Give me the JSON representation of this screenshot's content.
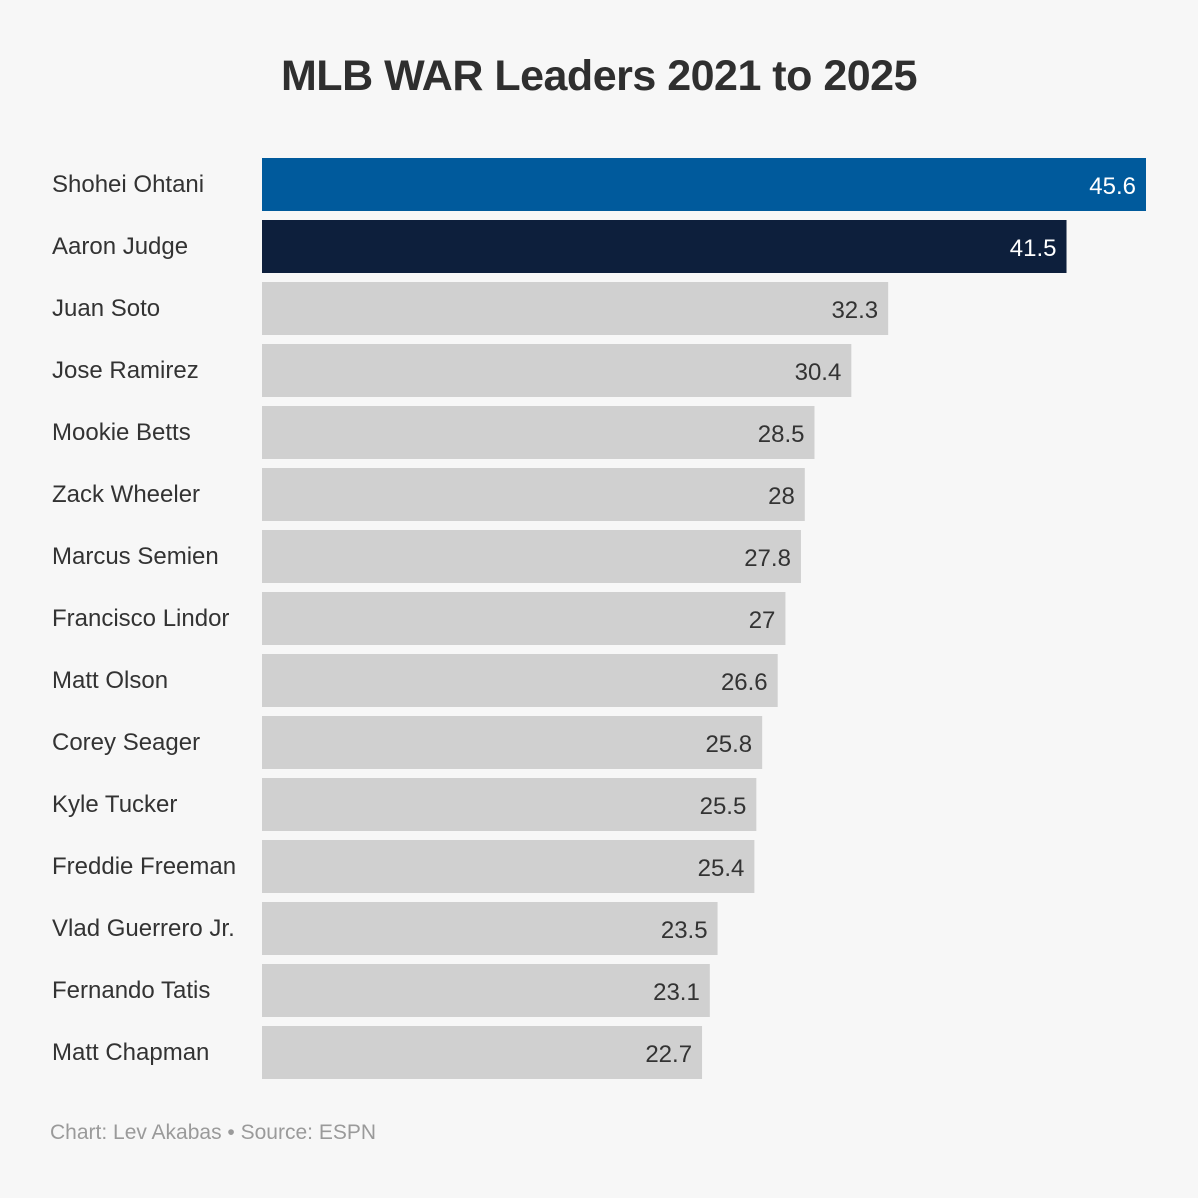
{
  "chart_data": {
    "type": "bar",
    "orientation": "horizontal",
    "title": "MLB WAR Leaders 2021 to 2025",
    "categories": [
      "Shohei Ohtani",
      "Aaron Judge",
      "Juan Soto",
      "Jose Ramirez",
      "Mookie Betts",
      "Zack Wheeler",
      "Marcus Semien",
      "Francisco Lindor",
      "Matt Olson",
      "Corey Seager",
      "Kyle Tucker",
      "Freddie Freeman",
      "Vlad Guerrero Jr.",
      "Fernando Tatis",
      "Matt Chapman"
    ],
    "values": [
      45.6,
      41.5,
      32.3,
      30.4,
      28.5,
      28,
      27.8,
      27,
      26.6,
      25.8,
      25.5,
      25.4,
      23.5,
      23.1,
      22.7
    ],
    "value_labels": [
      "45.6",
      "41.5",
      "32.3",
      "30.4",
      "28.5",
      "28",
      "27.8",
      "27",
      "26.6",
      "25.8",
      "25.5",
      "25.4",
      "23.5",
      "23.1",
      "22.7"
    ],
    "xlim": [
      0,
      45.6
    ],
    "grid": false,
    "colors": {
      "highlight_1": "#005a9c",
      "highlight_2": "#0d1f3c",
      "default": "#d0d0d0",
      "label_on_dark": "#ffffff",
      "label_on_light": "#333333"
    },
    "bar_colors": [
      "#005a9c",
      "#0d1f3c",
      "#d0d0d0",
      "#d0d0d0",
      "#d0d0d0",
      "#d0d0d0",
      "#d0d0d0",
      "#d0d0d0",
      "#d0d0d0",
      "#d0d0d0",
      "#d0d0d0",
      "#d0d0d0",
      "#d0d0d0",
      "#d0d0d0",
      "#d0d0d0"
    ]
  },
  "footer": {
    "credit": "Chart: Lev Akabas • Source: ESPN"
  }
}
